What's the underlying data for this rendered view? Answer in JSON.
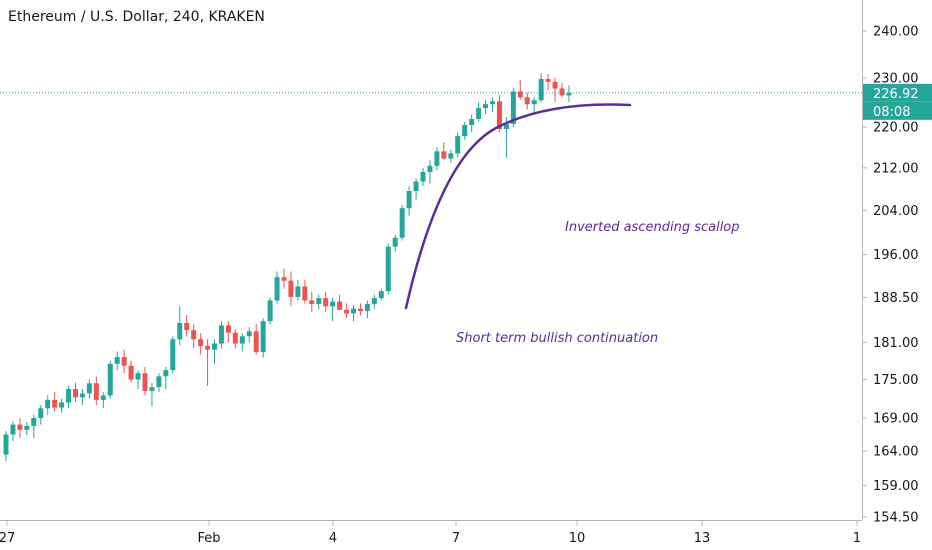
{
  "chart_data": {
    "type": "candlestick",
    "title": "Ethereum / U.S. Dollar, 240, KRAKEN",
    "x_ticks": [
      "27",
      "Feb",
      "4",
      "7",
      "10",
      "13",
      "1"
    ],
    "y_ticks": [
      "240.00",
      "230.00",
      "220.00",
      "212.00",
      "204.00",
      "196.00",
      "188.50",
      "181.00",
      "175.00",
      "169.00",
      "164.00",
      "159.00",
      "154.50"
    ],
    "ylim": [
      152,
      243
    ],
    "y_scale": "log",
    "grid": false,
    "current_price": {
      "value": 226.92,
      "label": "226.92",
      "countdown": "08:08"
    },
    "candles": [
      [
        163.5,
        167,
        162.5,
        166.5
      ],
      [
        166.5,
        168.5,
        165.5,
        168
      ],
      [
        168,
        169,
        166,
        167.2
      ],
      [
        167.2,
        168.4,
        166.4,
        167.8
      ],
      [
        167.8,
        169.5,
        166,
        169
      ],
      [
        169,
        171,
        168,
        170.5
      ],
      [
        170.5,
        172.5,
        169.5,
        171.8
      ],
      [
        171.8,
        173,
        170,
        170.6
      ],
      [
        170.6,
        172,
        169.8,
        171.4
      ],
      [
        171.4,
        174,
        170.5,
        173.5
      ],
      [
        173.5,
        174.5,
        171.5,
        172.2
      ],
      [
        172.2,
        173.5,
        171,
        172.8
      ],
      [
        172.8,
        175,
        172,
        174.4
      ],
      [
        174.4,
        175.5,
        171,
        171.8
      ],
      [
        171.8,
        173,
        170.5,
        172.5
      ],
      [
        172.5,
        178,
        172,
        177.5
      ],
      [
        177.5,
        179.5,
        176.5,
        178.6
      ],
      [
        178.6,
        179.8,
        176,
        177.2
      ],
      [
        177.2,
        178,
        174.5,
        175
      ],
      [
        175,
        176.5,
        173.5,
        176
      ],
      [
        176,
        177,
        172.5,
        173.2
      ],
      [
        173.2,
        174.5,
        170.8,
        173.8
      ],
      [
        173.8,
        176,
        173,
        175.5
      ],
      [
        175.5,
        177,
        173.5,
        176.5
      ],
      [
        176.5,
        182,
        176,
        181.5
      ],
      [
        181.5,
        187,
        180.5,
        184.2
      ],
      [
        184.2,
        185.5,
        182,
        183
      ],
      [
        183,
        184,
        180,
        181.5
      ],
      [
        181.5,
        182.5,
        179,
        180.4
      ],
      [
        180.4,
        181.5,
        174,
        179.8
      ],
      [
        179.8,
        181.5,
        177.5,
        180.8
      ],
      [
        180.8,
        184.5,
        180,
        183.8
      ],
      [
        183.8,
        184.5,
        181,
        182.6
      ],
      [
        182.6,
        183.2,
        180,
        180.8
      ],
      [
        180.8,
        182.5,
        179.5,
        182
      ],
      [
        182,
        183.5,
        181,
        182.8
      ],
      [
        182.8,
        184,
        179,
        179.4
      ],
      [
        179.4,
        185,
        178.5,
        184.5
      ],
      [
        184.5,
        188.5,
        184,
        188
      ],
      [
        188,
        193,
        187.5,
        192
      ],
      [
        192,
        193.5,
        190,
        191.4
      ],
      [
        191.4,
        193,
        187,
        188.6
      ],
      [
        188.6,
        191.5,
        188,
        190.4
      ],
      [
        190.4,
        191.5,
        187.5,
        188
      ],
      [
        188,
        189.5,
        186,
        187.4
      ],
      [
        187.4,
        189,
        186.5,
        188.4
      ],
      [
        188.4,
        189.5,
        186,
        187
      ],
      [
        187,
        188.5,
        184.5,
        187.8
      ],
      [
        187.8,
        189,
        186.5,
        186.4
      ],
      [
        186.4,
        187.5,
        185,
        185.8
      ],
      [
        185.8,
        187.2,
        184.5,
        186.6
      ],
      [
        186.6,
        187.5,
        185.5,
        186.2
      ],
      [
        186.2,
        188,
        185,
        187.4
      ],
      [
        187.4,
        189,
        186.5,
        188.4
      ],
      [
        188.4,
        190,
        188,
        189.6
      ],
      [
        189.6,
        198,
        189,
        197.4
      ],
      [
        197.4,
        199.5,
        196.5,
        199
      ],
      [
        199,
        205,
        198.5,
        204.4
      ],
      [
        204.4,
        208.5,
        203,
        207.6
      ],
      [
        207.6,
        210,
        206,
        209.4
      ],
      [
        209.4,
        212,
        208.5,
        211.2
      ],
      [
        211.2,
        213.5,
        209,
        212.4
      ],
      [
        212.4,
        216,
        211.5,
        215.2
      ],
      [
        215.2,
        217,
        213.5,
        213.8
      ],
      [
        213.8,
        215.5,
        213,
        214.8
      ],
      [
        214.8,
        219,
        214,
        218.2
      ],
      [
        218.2,
        221,
        217.5,
        220.4
      ],
      [
        220.4,
        222.5,
        219,
        221.6
      ],
      [
        221.6,
        225,
        221,
        223.8
      ],
      [
        223.8,
        225.5,
        222.5,
        224.6
      ],
      [
        224.6,
        226,
        223,
        225.2
      ],
      [
        225.2,
        226.5,
        219,
        219.6
      ],
      [
        219.6,
        222,
        214,
        220.6
      ],
      [
        220.6,
        228,
        220,
        227.2
      ],
      [
        227.2,
        229.5,
        225.5,
        226
      ],
      [
        226,
        227,
        223.5,
        224.6
      ],
      [
        224.6,
        226,
        222.5,
        225.4
      ],
      [
        225.4,
        231,
        225,
        229.8
      ],
      [
        229.8,
        230.8,
        227.5,
        229.2
      ],
      [
        229.2,
        230,
        225,
        227.8
      ],
      [
        227.8,
        229,
        226,
        226.4
      ],
      [
        226.4,
        228.5,
        225,
        226.92
      ]
    ],
    "annotations": [
      {
        "text": "Inverted ascending scallop",
        "color": "#5b2d9c"
      },
      {
        "text": "Short term bullish continuation",
        "color": "#5b2d9c"
      }
    ],
    "curve_color": "#5b2d9c",
    "up_color": "#26a69a",
    "down_color": "#ef5350"
  }
}
